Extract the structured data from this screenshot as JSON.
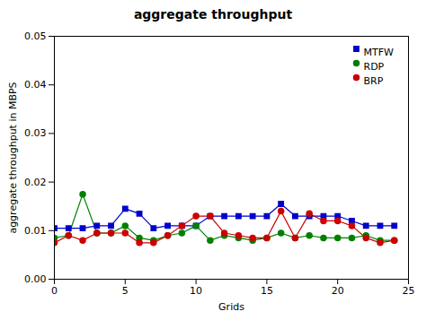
{
  "chart_data": {
    "type": "line",
    "title": "aggregate throughput",
    "xlabel": "Grids",
    "ylabel": "aggregate throughput in MBPS",
    "x": [
      0,
      1,
      2,
      3,
      4,
      5,
      6,
      7,
      8,
      9,
      10,
      11,
      12,
      13,
      14,
      15,
      16,
      17,
      18,
      19,
      20,
      21,
      22,
      23,
      24
    ],
    "xlim": [
      0,
      25
    ],
    "xticks": [
      0,
      5,
      10,
      15,
      20,
      25
    ],
    "ylim": [
      0.0,
      0.05
    ],
    "yticks": [
      {
        "value": 0,
        "label": "0.00"
      },
      0.01,
      0.02,
      0.03,
      0.04,
      0.05
    ],
    "grid": false,
    "legend": "upper right",
    "series": [
      {
        "name": "MTFW",
        "color": "#0000cc",
        "marker": "square",
        "values": [
          0.0105,
          0.0105,
          0.0105,
          0.011,
          0.011,
          0.0145,
          0.0135,
          0.0105,
          0.011,
          0.011,
          0.011,
          0.013,
          0.013,
          0.013,
          0.013,
          0.013,
          0.0155,
          0.013,
          0.013,
          0.013,
          0.013,
          0.012,
          0.011,
          0.011,
          0.011
        ]
      },
      {
        "name": "RDP",
        "color": "#008000",
        "marker": "circle",
        "values": [
          0.0085,
          0.009,
          0.0175,
          0.0095,
          0.0095,
          0.011,
          0.0085,
          0.008,
          0.009,
          0.0095,
          0.011,
          0.008,
          0.009,
          0.0085,
          0.008,
          0.0085,
          0.0095,
          0.0085,
          0.009,
          0.0085,
          0.0085,
          0.0085,
          0.009,
          0.008,
          0.008
        ]
      },
      {
        "name": "BRP",
        "color": "#cc0000",
        "marker": "circle",
        "values": [
          0.0075,
          0.009,
          0.008,
          0.0095,
          0.0095,
          0.0095,
          0.0075,
          0.0075,
          0.009,
          0.011,
          0.013,
          0.013,
          0.0095,
          0.009,
          0.0085,
          0.0085,
          0.014,
          0.0085,
          0.0135,
          0.012,
          0.012,
          0.011,
          0.0085,
          0.0075,
          0.008
        ]
      }
    ]
  }
}
